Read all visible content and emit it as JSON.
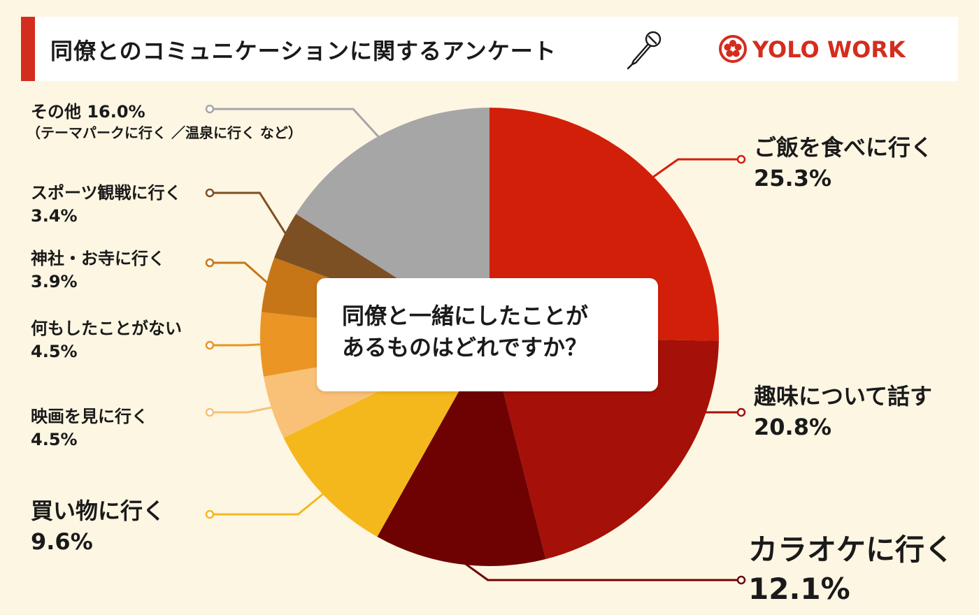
{
  "header": {
    "title": "同僚とのコミュニケーションに関するアンケート",
    "brand": "YOLO WORK",
    "accent_color": "#d42d1e"
  },
  "center_question": {
    "line1": "同僚と一緒にしたことが",
    "line2": "あるものはどれですか？"
  },
  "chart_data": {
    "type": "pie",
    "start_angle_deg": 0,
    "direction": "clockwise",
    "slices": [
      {
        "label": "ご飯を食べに行く",
        "value": 25.3,
        "value_text": "25.3%",
        "color": "#d21f0a"
      },
      {
        "label": "趣味について話す",
        "value": 20.8,
        "value_text": "20.8%",
        "color": "#a51008"
      },
      {
        "label": "カラオケに行く",
        "value": 12.1,
        "value_text": "12.1%",
        "color": "#6e0202"
      },
      {
        "label": "買い物に行く",
        "value": 9.6,
        "value_text": "9.6%",
        "color": "#f5b81c"
      },
      {
        "label": "映画を見に行く",
        "value": 4.5,
        "value_text": "4.5%",
        "color": "#f9c177"
      },
      {
        "label": "何もしたことがない",
        "value": 4.5,
        "value_text": "4.5%",
        "color": "#eb9524"
      },
      {
        "label": "神社・お寺に行く",
        "value": 3.9,
        "value_text": "3.9%",
        "color": "#c77617"
      },
      {
        "label": "スポーツ観戦に行く",
        "value": 3.4,
        "value_text": "3.4%",
        "color": "#7d5023"
      },
      {
        "label": "その他",
        "value": 16.0,
        "value_text": "16.0%",
        "color": "#a6a6a6",
        "note": "（テーマパークに行く ／温泉に行く など）"
      }
    ]
  }
}
